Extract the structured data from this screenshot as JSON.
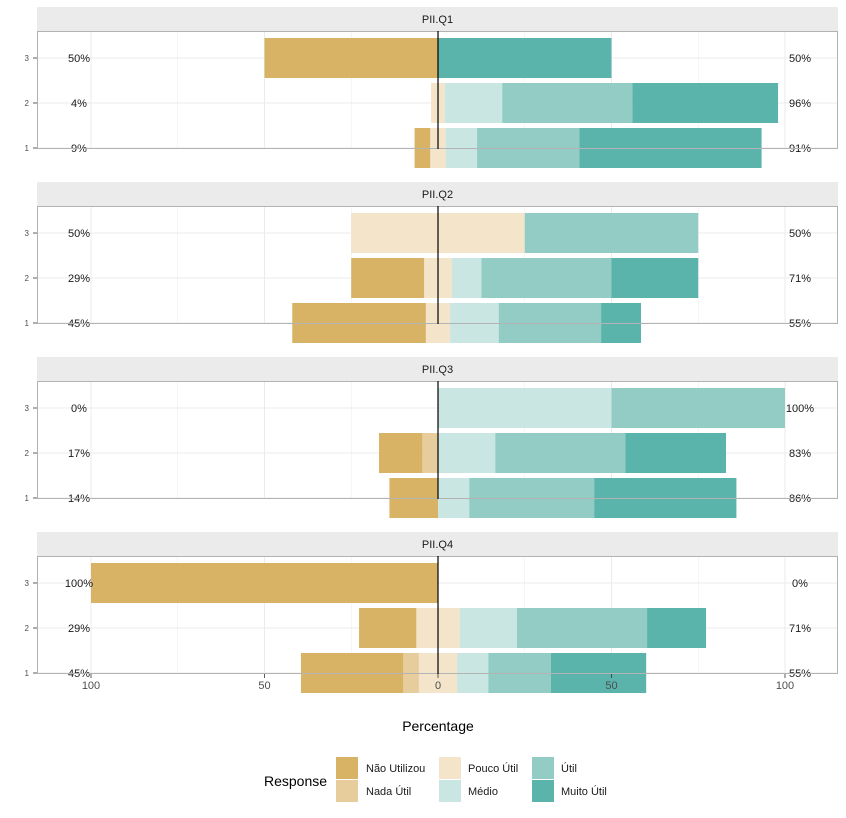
{
  "chart_data": {
    "type": "bar",
    "subtype": "diverging-stacked-horizontal",
    "xlabel": "Percentage",
    "xlim": [
      -100,
      100
    ],
    "x_tick_values": [
      -100,
      -50,
      0,
      50,
      100
    ],
    "x_tick_labels": [
      "100",
      "50",
      "0",
      "50",
      "100"
    ],
    "legend_title": "Response",
    "legend_position": "bottom",
    "categories": [
      "Não Utilizou",
      "Nada Útil",
      "Pouco Útil",
      "Médio",
      "Útil",
      "Muito Útil"
    ],
    "colors": {
      "Não Utilizou": "#d8b365",
      "Nada Útil": "#e8cd9c",
      "Pouco Útil": "#f3e4ca",
      "Médio": "#c9e6e3",
      "Útil": "#92ccc4",
      "Muito Útil": "#5ab4ac"
    },
    "panels": [
      {
        "title": "PII.Q1",
        "rows": [
          {
            "label": "3",
            "left_pct": "50%",
            "right_pct": "50%",
            "values": {
              "Não Utilizou": 50,
              "Nada Útil": 0,
              "Pouco Útil": 0,
              "Médio": 0,
              "Útil": 0,
              "Muito Útil": 50
            }
          },
          {
            "label": "2",
            "left_pct": "4%",
            "right_pct": "96%",
            "values": {
              "Não Utilizou": 0,
              "Nada Útil": 0,
              "Pouco Útil": 4,
              "Médio": 16.5,
              "Útil": 37.5,
              "Muito Útil": 42
            }
          },
          {
            "label": "1",
            "left_pct": "9%",
            "right_pct": "91%",
            "values": {
              "Não Utilizou": 4.5,
              "Nada Útil": 0,
              "Pouco Útil": 4.5,
              "Médio": 9,
              "Útil": 29.5,
              "Muito Útil": 52.5
            }
          }
        ]
      },
      {
        "title": "PII.Q2",
        "rows": [
          {
            "label": "3",
            "left_pct": "50%",
            "right_pct": "50%",
            "values": {
              "Não Utilizou": 0,
              "Nada Útil": 0,
              "Pouco Útil": 50,
              "Médio": 0,
              "Útil": 50,
              "Muito Útil": 0
            }
          },
          {
            "label": "2",
            "left_pct": "29%",
            "right_pct": "71%",
            "values": {
              "Não Utilizou": 21,
              "Nada Útil": 0,
              "Pouco Útil": 8,
              "Médio": 8.5,
              "Útil": 37.5,
              "Muito Útil": 25
            }
          },
          {
            "label": "1",
            "left_pct": "45%",
            "right_pct": "55%",
            "values": {
              "Não Utilizou": 38.5,
              "Nada Útil": 0,
              "Pouco Útil": 7,
              "Médio": 14,
              "Útil": 29.5,
              "Muito Útil": 11.5
            }
          }
        ]
      },
      {
        "title": "PII.Q3",
        "rows": [
          {
            "label": "3",
            "left_pct": "0%",
            "right_pct": "100%",
            "values": {
              "Não Utilizou": 0,
              "Nada Útil": 0,
              "Pouco Útil": 0,
              "Médio": 50,
              "Útil": 50,
              "Muito Útil": 0
            }
          },
          {
            "label": "2",
            "left_pct": "17%",
            "right_pct": "83%",
            "values": {
              "Não Utilizou": 12.5,
              "Nada Útil": 4.5,
              "Pouco Útil": 0,
              "Médio": 16.5,
              "Útil": 37.5,
              "Muito Útil": 29
            }
          },
          {
            "label": "1",
            "left_pct": "14%",
            "right_pct": "86%",
            "values": {
              "Não Utilizou": 14,
              "Nada Útil": 0,
              "Pouco Útil": 0,
              "Médio": 9,
              "Útil": 36,
              "Muito Útil": 41
            }
          }
        ]
      },
      {
        "title": "PII.Q4",
        "rows": [
          {
            "label": "3",
            "left_pct": "100%",
            "right_pct": "0%",
            "values": {
              "Não Utilizou": 100,
              "Nada Útil": 0,
              "Pouco Útil": 0,
              "Médio": 0,
              "Útil": 0,
              "Muito Útil": 0
            }
          },
          {
            "label": "2",
            "left_pct": "29%",
            "right_pct": "71%",
            "values": {
              "Não Utilizou": 16.5,
              "Nada Útil": 0,
              "Pouco Útil": 12.5,
              "Médio": 16.5,
              "Útil": 37.5,
              "Muito Útil": 17
            }
          },
          {
            "label": "1",
            "left_pct": "45%",
            "right_pct": "55%",
            "values": {
              "Não Utilizou": 29.5,
              "Nada Útil": 4.5,
              "Pouco Útil": 11,
              "Médio": 9,
              "Útil": 18,
              "Muito Útil": 27.5
            }
          }
        ]
      }
    ]
  }
}
